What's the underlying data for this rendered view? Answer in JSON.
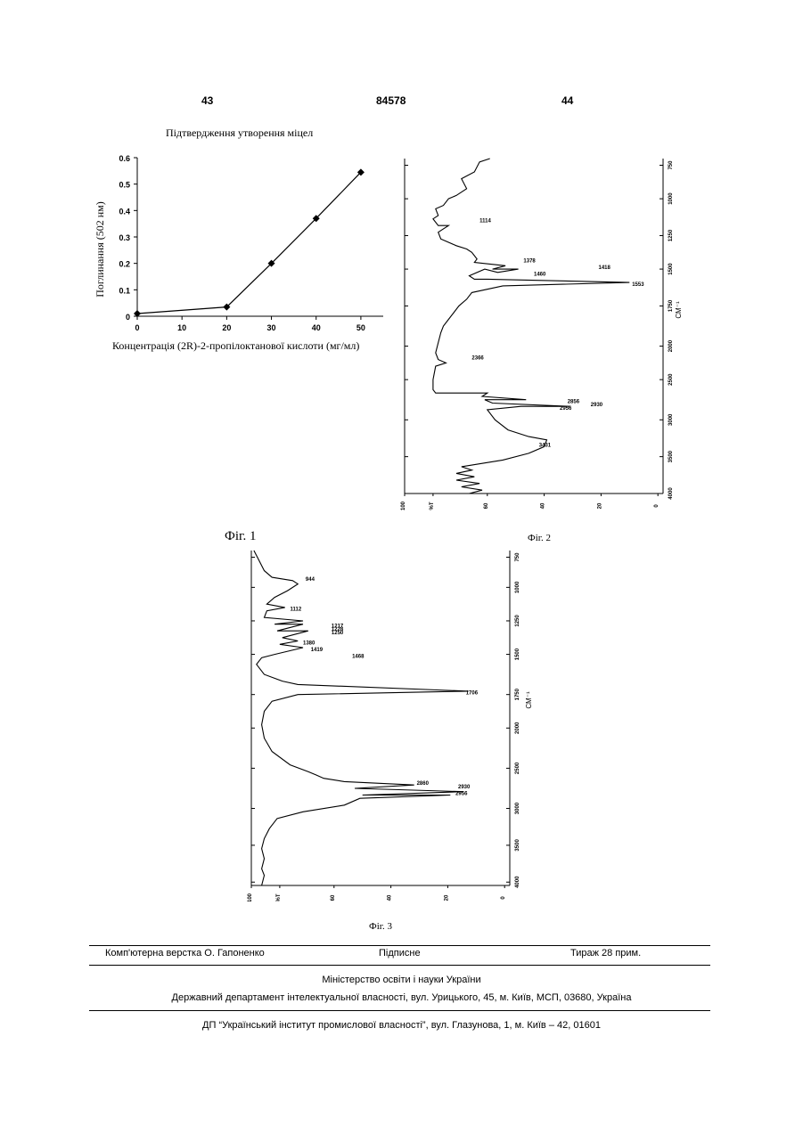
{
  "header": {
    "left_page": "43",
    "patent_number": "84578",
    "right_page": "44"
  },
  "figures": {
    "fig1_caption": "Фіг. 1",
    "fig2_caption": "Фіг. 2",
    "fig3_caption": "Фіг. 3"
  },
  "chart_data": [
    {
      "type": "line",
      "title": "Підтвердження утворення міцел",
      "xlabel": "Концентрація (2R)-2-пропілоктанової кислоти (мг/мл)",
      "ylabel": "Поглинання (502 нм)",
      "x": [
        0,
        20,
        30,
        40,
        50
      ],
      "y": [
        0.01,
        0.035,
        0.2,
        0.37,
        0.545
      ],
      "xlim": [
        0,
        55
      ],
      "ylim": [
        0,
        0.6
      ],
      "xticks": [
        "0",
        "10",
        "20",
        "30",
        "40",
        "50"
      ],
      "yticks": [
        "0",
        "0.1",
        "0.2",
        "0.3",
        "0.4",
        "0.5",
        "0.6"
      ],
      "marker": "diamond",
      "grid": false
    },
    {
      "type": "line",
      "title": "",
      "xlabel": "СМ⁻¹",
      "ylabel": "",
      "orientation": "rotated",
      "wavenumber_ticks": [
        "750",
        "1000",
        "1250",
        "1500",
        "1750",
        "2000",
        "2500",
        "3000",
        "3500",
        "4000"
      ],
      "transmittance_ticks": [
        "100",
        "%T",
        "60",
        "40",
        "20",
        "0"
      ],
      "peak_labels": [
        "1114",
        "1378",
        "1418",
        "1460",
        "1553",
        "2366",
        "2856",
        "2930",
        "2956",
        "3431"
      ]
    },
    {
      "type": "line",
      "title": "",
      "xlabel": "СМ⁻¹",
      "ylabel": "",
      "orientation": "rotated",
      "wavenumber_ticks": [
        "750",
        "1000",
        "1250",
        "1500",
        "1750",
        "2000",
        "2500",
        "3000",
        "3500",
        "4000"
      ],
      "transmittance_ticks": [
        "100",
        "%T",
        "60",
        "40",
        "20",
        "0"
      ],
      "peak_labels": [
        "944",
        "1112",
        "1217",
        "1228",
        "1250",
        "1380",
        "1419",
        "1468",
        "1706",
        "2860",
        "2930",
        "2956"
      ]
    }
  ],
  "footer": {
    "layout": "Комп'ютерна верстка О. Гапоненко",
    "subscription": "Підписне",
    "circulation": "Тираж 28 прим.",
    "ministry": "Міністерство освіти і науки України",
    "department": "Державний департамент інтелектуальної власності, вул. Урицького, 45, м. Київ, МСП, 03680, Україна",
    "institute": "ДП “Український інститут промислової власності”, вул. Глазунова, 1, м. Київ – 42, 01601"
  }
}
